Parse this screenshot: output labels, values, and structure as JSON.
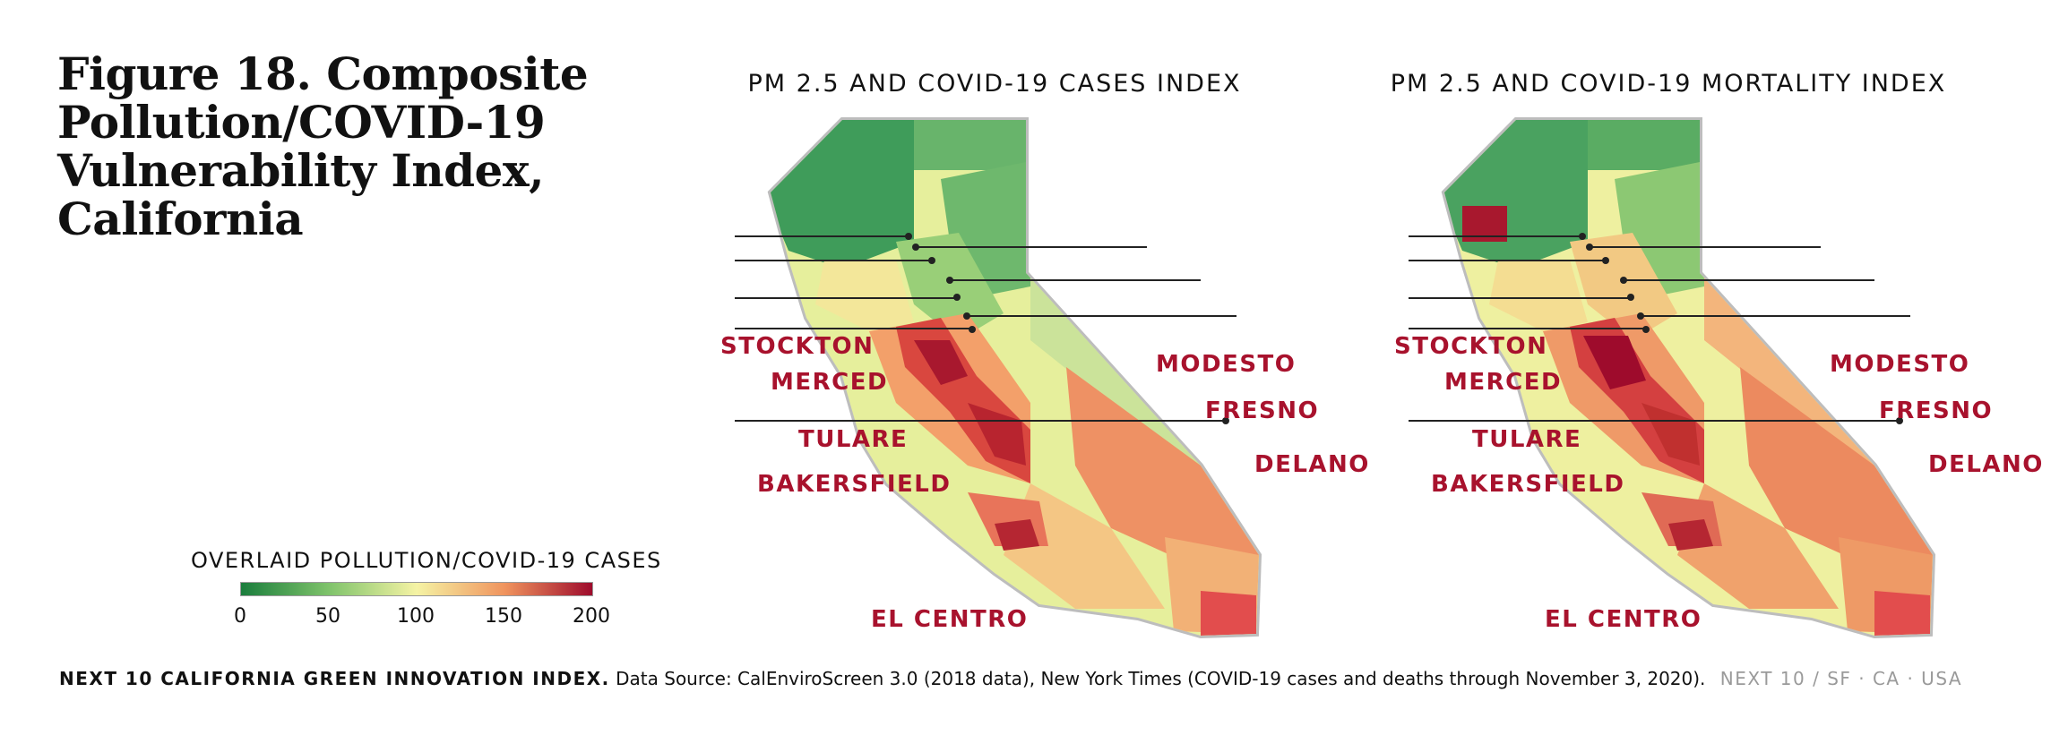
{
  "title": "Figure 18. Composite Pollution/COVID-19 Vulnerability Index, California",
  "maps": [
    {
      "heading": "PM 2.5 AND COVID-19 CASES INDEX"
    },
    {
      "heading": "PM 2.5 AND COVID-19 MORTALITY INDEX"
    }
  ],
  "cities": {
    "stockton": "STOCKTON",
    "merced": "MERCED",
    "tulare": "TULARE",
    "bakersfield": "BAKERSFIELD",
    "el_centro": "EL CENTRO",
    "modesto": "MODESTO",
    "fresno": "FRESNO",
    "delano": "DELANO"
  },
  "legend": {
    "title": "OVERLAID POLLUTION/COVID-19 CASES",
    "ticks": [
      "0",
      "50",
      "100",
      "150",
      "200"
    ],
    "colors": [
      "#1a7d3c",
      "#7fc36b",
      "#f5f3a4",
      "#f0945e",
      "#9e0b2c"
    ]
  },
  "footer": {
    "brand": "NEXT 10 CALIFORNIA GREEN INNOVATION INDEX.",
    "source": "Data Source: CalEnviroScreen 3.0 (2018 data), New York Times (COVID-19 cases and deaths through November 3, 2020).",
    "org": "NEXT 10  /  SF · CA · USA"
  }
}
